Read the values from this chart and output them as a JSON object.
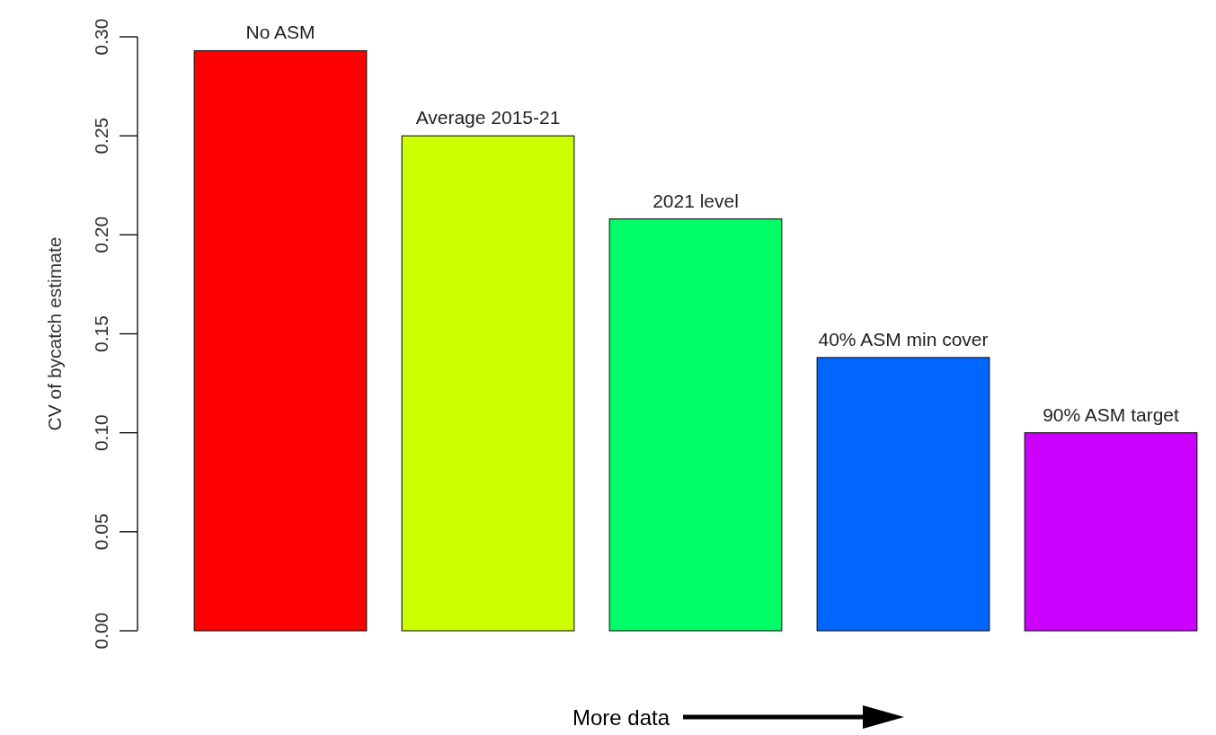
{
  "chart_data": {
    "type": "bar",
    "ylabel": "CV of bycatch estimate",
    "xlabel": "More data",
    "categories": [
      "No ASM",
      "Average 2015-21",
      "2021 level",
      "40% ASM min cover",
      "90% ASM target"
    ],
    "values": [
      0.293,
      0.25,
      0.208,
      0.138,
      0.1
    ],
    "colors": [
      "#ff0000",
      "#ccff00",
      "#00ff66",
      "#0066ff",
      "#cc00ff"
    ],
    "ylim": [
      0,
      0.3
    ],
    "yticks": [
      {
        "value": 0,
        "label": "0.00"
      },
      {
        "value": 0.05,
        "label": "0.05"
      },
      {
        "value": 0.1,
        "label": "0.10"
      },
      {
        "value": 0.15,
        "label": "0.15"
      },
      {
        "value": 0.2,
        "label": "0.20"
      },
      {
        "value": 0.25,
        "label": "0.25"
      },
      {
        "value": 0.3,
        "label": "0.30"
      }
    ],
    "grid": false
  }
}
